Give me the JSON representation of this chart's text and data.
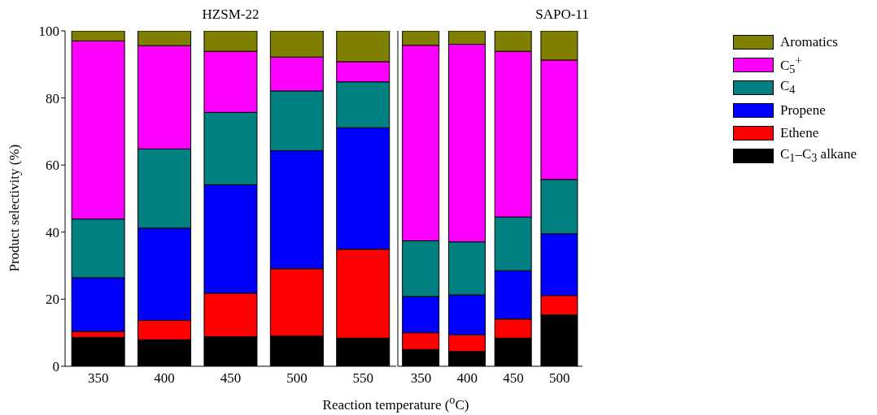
{
  "chart_data": [
    {
      "type": "bar",
      "title": "HZSM-22",
      "xlabel": "Reaction temperature ($^{o}$C)",
      "ylabel": "Product selectivity (%)",
      "categories": [
        "350",
        "400",
        "450",
        "500",
        "550"
      ],
      "stacked": true,
      "ylim": [
        0,
        100
      ],
      "yticks": [
        0,
        20,
        40,
        60,
        80,
        100
      ],
      "series": [
        {
          "color": "#000000",
          "values": [
            8.6,
            7.9,
            8.8,
            9.0,
            8.4
          ]
        },
        {
          "color": "#ff0000",
          "values": [
            1.8,
            5.8,
            13.0,
            20.1,
            26.5
          ]
        },
        {
          "color": "#0000ff",
          "values": [
            16.0,
            27.5,
            32.3,
            35.2,
            36.2
          ]
        },
        {
          "color": "#008080",
          "values": [
            17.5,
            23.6,
            21.6,
            17.8,
            13.7
          ]
        },
        {
          "color": "#ff00ff",
          "values": [
            53.1,
            30.8,
            18.2,
            10.1,
            6.0
          ]
        },
        {
          "color": "#808000",
          "values": [
            3.0,
            4.4,
            6.1,
            7.8,
            9.2
          ]
        }
      ]
    },
    {
      "type": "bar",
      "title": "SAPO-11",
      "categories": [
        "350",
        "400",
        "450",
        "500"
      ],
      "stacked": true,
      "ylim": [
        0,
        100
      ],
      "yticks": [
        0,
        20,
        40,
        60,
        80,
        100
      ],
      "tick_labels": "x",
      "legend": "right",
      "series": [
        {
          "name": "C$_{1}$–C$_{3}$ alkane",
          "color": "#000000",
          "values": [
            5.0,
            4.4,
            8.4,
            15.3
          ]
        },
        {
          "name": "Ethene",
          "color": "#ff0000",
          "values": [
            5.0,
            5.0,
            5.7,
            5.8
          ]
        },
        {
          "name": "Propene",
          "color": "#0000ff",
          "values": [
            10.8,
            11.9,
            14.4,
            18.4
          ]
        },
        {
          "name": "C$_{4}$",
          "color": "#008080",
          "values": [
            16.6,
            15.8,
            16.0,
            16.2
          ]
        },
        {
          "name": "C$_{5}$$^{+}$",
          "color": "#ff00ff",
          "values": [
            58.3,
            58.9,
            49.4,
            35.6
          ]
        },
        {
          "name": "Aromatics",
          "color": "#808000",
          "values": [
            4.3,
            4.0,
            6.1,
            8.7
          ]
        }
      ]
    }
  ]
}
